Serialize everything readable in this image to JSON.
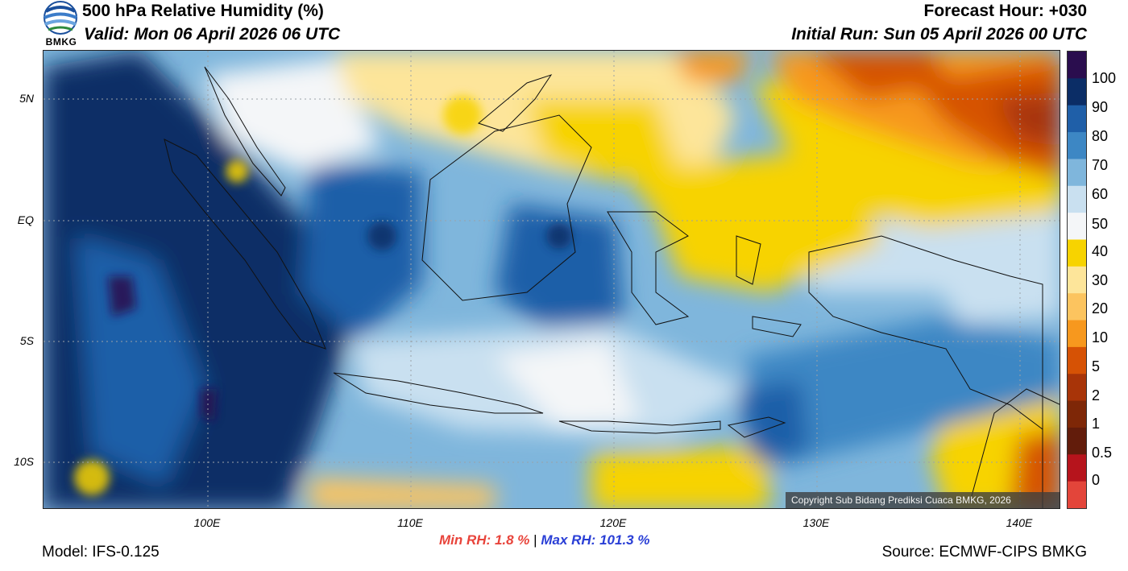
{
  "header": {
    "title": "500 hPa Relative Humidity (%)",
    "valid": "Valid: Mon 06 April 2026 06 UTC",
    "forecast_hour": "Forecast Hour: +030",
    "initial_run": "Initial Run: Sun 05 April 2026 00 UTC"
  },
  "logo": {
    "text": "BMKG",
    "icon": "bmkg-logo-icon"
  },
  "map": {
    "lat_labels": [
      "5N",
      "EQ",
      "5S",
      "10S"
    ],
    "lon_labels": [
      "100E",
      "110E",
      "120E",
      "130E",
      "140E"
    ],
    "copyright": "Copyright Sub Bidang Prediksi Cuaca BMKG, 2026"
  },
  "colorbar": {
    "labels": [
      "100",
      "90",
      "80",
      "70",
      "60",
      "50",
      "40",
      "30",
      "20",
      "10",
      "5",
      "2",
      "1",
      "0.5",
      "0"
    ],
    "colors": [
      "#2a0d4e",
      "#0b2d66",
      "#1f5fa8",
      "#3d87c4",
      "#7fb6dc",
      "#c9e0f0",
      "#f4f6f8",
      "#f7d300",
      "#fde59a",
      "#fcc45f",
      "#f7981e",
      "#d65205",
      "#a83408",
      "#7e2707",
      "#621c0b",
      "#b6141c",
      "#e3453a"
    ]
  },
  "footer": {
    "min_rh_label": "Min RH:",
    "min_rh_value": "1.8 %",
    "separator": "|",
    "max_rh_label": "Max RH:",
    "max_rh_value": "101.3 %",
    "model": "Model: IFS-0.125",
    "source": "Source: ECMWF-CIPS BMKG"
  }
}
